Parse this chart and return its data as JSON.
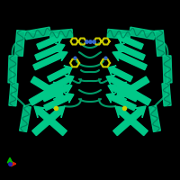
{
  "background_color": "#000000",
  "protein_color_bright": "#00C888",
  "protein_color_mid": "#009966",
  "protein_color_dark": "#007755",
  "ligand_yellow": "#CCCC00",
  "ligand_blue": "#3366CC",
  "axis_x_color": "#DD2200",
  "axis_y_color": "#00BB00",
  "axis_z_color": "#2222BB",
  "figsize": [
    2.0,
    2.0
  ],
  "dpi": 100
}
